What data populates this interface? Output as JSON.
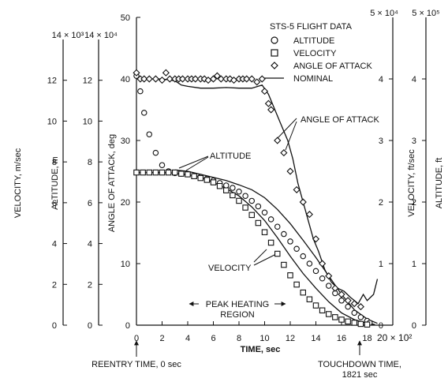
{
  "chart_data": {
    "type": "scatter",
    "title": "STS-5 FLIGHT DATA",
    "x_axis": {
      "label": "TIME, sec",
      "range": [
        0,
        20
      ],
      "ticks": [
        "0",
        "2",
        "4",
        "6",
        "8",
        "10",
        "12",
        "14",
        "16",
        "18"
      ],
      "end_label": "20 × 10²",
      "multiplier": 100
    },
    "y_axes": [
      {
        "id": "aoa",
        "label": "ANGLE OF ATTACK, deg",
        "range": [
          0,
          50
        ],
        "ticks": [
          "0",
          "10",
          "20",
          "30",
          "40",
          "50"
        ]
      },
      {
        "id": "alt_m",
        "label": "ALTITUDE, m",
        "range": [
          0,
          140000
        ],
        "ticks": [
          "0",
          "2",
          "4",
          "6",
          "8",
          "10",
          "12"
        ],
        "multiplier_label": "14 × 10⁴"
      },
      {
        "id": "vel_ms",
        "label": "VELOCITY, m/sec",
        "range": [
          0,
          14000
        ],
        "ticks": [
          "0",
          "2",
          "4",
          "6",
          "8",
          "10",
          "12"
        ],
        "multiplier_label": "14 × 10³"
      },
      {
        "id": "vel_fts",
        "label": "VELOCITY, ft/sec",
        "range": [
          0,
          50000
        ],
        "ticks": [
          "0",
          "1",
          "2",
          "3",
          "4"
        ],
        "multiplier_label": "5 × 10⁴"
      },
      {
        "id": "alt_ft",
        "label": "ALTITUDE, ft",
        "range": [
          0,
          500000
        ],
        "ticks": [
          "0",
          "1",
          "2",
          "3",
          "4"
        ],
        "multiplier_label": "5 × 10⁵"
      }
    ],
    "legend": {
      "title": "STS-5 FLIGHT DATA",
      "entries": [
        {
          "marker": "circle",
          "label": "ALTITUDE"
        },
        {
          "marker": "square",
          "label": "VELOCITY"
        },
        {
          "marker": "diamond",
          "label": "ANGLE OF ATTACK"
        },
        {
          "marker": "line",
          "label": "NOMINAL"
        }
      ],
      "placement": "top-right"
    },
    "annotations": {
      "angle_of_attack": "ANGLE OF ATTACK",
      "altitude": "ALTITUDE",
      "velocity": "VELOCITY",
      "peak_heating_line1": "PEAK HEATING",
      "peak_heating_line2": "REGION",
      "reentry_time": "REENTRY TIME, 0 sec",
      "touchdown_line1": "TOUCHDOWN TIME,",
      "touchdown_line2": "1821 sec"
    },
    "peak_heating_region": [
      4,
      12
    ],
    "series": [
      {
        "name": "ALTITUDE",
        "marker": "circle",
        "axis": "aoa",
        "points": [
          [
            0,
            40.5
          ],
          [
            0.3,
            38
          ],
          [
            0.6,
            34.5
          ],
          [
            1,
            31
          ],
          [
            1.5,
            28
          ],
          [
            2,
            26
          ],
          [
            2.5,
            25
          ],
          [
            3,
            24.7
          ],
          [
            3.5,
            24.6
          ],
          [
            4,
            24.5
          ],
          [
            4.5,
            24.3
          ],
          [
            5,
            24.1
          ],
          [
            5.5,
            23.8
          ],
          [
            6,
            23.5
          ],
          [
            6.5,
            23.1
          ],
          [
            7,
            22.7
          ],
          [
            7.5,
            22.3
          ],
          [
            8,
            21.7
          ],
          [
            8.5,
            21
          ],
          [
            9,
            20.2
          ],
          [
            9.5,
            19.3
          ],
          [
            10,
            18.3
          ],
          [
            10.5,
            17.2
          ],
          [
            11,
            16
          ],
          [
            11.5,
            14.8
          ],
          [
            12,
            13.6
          ],
          [
            12.5,
            12.4
          ],
          [
            13,
            11.2
          ],
          [
            13.5,
            10
          ],
          [
            14,
            8.8
          ],
          [
            14.5,
            7.6
          ],
          [
            15,
            6.4
          ],
          [
            15.5,
            5.2
          ],
          [
            16,
            4
          ],
          [
            16.5,
            3
          ],
          [
            17,
            2
          ],
          [
            17.5,
            1.3
          ],
          [
            18,
            0.7
          ],
          [
            18.2,
            0.4
          ]
        ]
      },
      {
        "name": "VELOCITY",
        "marker": "square",
        "axis": "aoa",
        "points": [
          [
            0,
            24.8
          ],
          [
            0.5,
            24.8
          ],
          [
            1,
            24.8
          ],
          [
            1.5,
            24.8
          ],
          [
            2,
            24.8
          ],
          [
            2.5,
            24.8
          ],
          [
            3,
            24.8
          ],
          [
            3.5,
            24.6
          ],
          [
            4,
            24.5
          ],
          [
            4.5,
            24.2
          ],
          [
            5,
            23.9
          ],
          [
            5.5,
            23.6
          ],
          [
            6,
            23.2
          ],
          [
            6.5,
            22.6
          ],
          [
            7,
            21.9
          ],
          [
            7.5,
            21.1
          ],
          [
            8,
            20.2
          ],
          [
            8.5,
            19.1
          ],
          [
            9,
            17.9
          ],
          [
            9.5,
            16.6
          ],
          [
            10,
            15.1
          ],
          [
            10.5,
            13.4
          ],
          [
            11,
            11.6
          ],
          [
            11.5,
            9.8
          ],
          [
            12,
            8.1
          ],
          [
            12.5,
            6.6
          ],
          [
            13,
            5.3
          ],
          [
            13.5,
            4.2
          ],
          [
            14,
            3.2
          ],
          [
            14.5,
            2.4
          ],
          [
            15,
            1.8
          ],
          [
            15.5,
            1.3
          ],
          [
            16,
            0.9
          ],
          [
            16.5,
            0.6
          ],
          [
            17,
            0.4
          ],
          [
            17.5,
            0.2
          ],
          [
            18,
            0.1
          ]
        ]
      },
      {
        "name": "ANGLE OF ATTACK",
        "marker": "diamond",
        "axis": "aoa",
        "points": [
          [
            0,
            41
          ],
          [
            0.3,
            40
          ],
          [
            0.6,
            40
          ],
          [
            1,
            40
          ],
          [
            1.5,
            40
          ],
          [
            2,
            39.8
          ],
          [
            2.3,
            41
          ],
          [
            2.6,
            40
          ],
          [
            3,
            40
          ],
          [
            3.3,
            40
          ],
          [
            3.6,
            40
          ],
          [
            4,
            40
          ],
          [
            4.3,
            40
          ],
          [
            4.6,
            40
          ],
          [
            5,
            40
          ],
          [
            5.3,
            40
          ],
          [
            5.6,
            39.8
          ],
          [
            6,
            40
          ],
          [
            6.3,
            40.5
          ],
          [
            6.6,
            40
          ],
          [
            7,
            40
          ],
          [
            7.3,
            40
          ],
          [
            7.6,
            39.8
          ],
          [
            8,
            40
          ],
          [
            8.3,
            40
          ],
          [
            8.6,
            40
          ],
          [
            9,
            40
          ],
          [
            9.4,
            39.5
          ],
          [
            9.8,
            40
          ],
          [
            10,
            38
          ],
          [
            10.3,
            36
          ],
          [
            10.5,
            35
          ],
          [
            11,
            30
          ],
          [
            11.5,
            28
          ],
          [
            12,
            25
          ],
          [
            12.5,
            22
          ],
          [
            13,
            20
          ],
          [
            13.5,
            18
          ],
          [
            14,
            14
          ],
          [
            14.5,
            10
          ],
          [
            15,
            8
          ],
          [
            15.5,
            6
          ],
          [
            16,
            5
          ],
          [
            16.5,
            4
          ],
          [
            17,
            3.5
          ],
          [
            17.5,
            3
          ]
        ]
      },
      {
        "name": "NOMINAL",
        "marker": "line",
        "axis": "aoa",
        "curves": [
          [
            [
              0,
              40
            ],
            [
              0.5,
              40
            ],
            [
              1,
              40
            ],
            [
              2,
              40
            ],
            [
              3,
              39.7
            ],
            [
              3.5,
              39
            ],
            [
              4,
              38.8
            ],
            [
              5,
              38.5
            ],
            [
              6,
              38.5
            ],
            [
              7,
              38.6
            ],
            [
              8,
              38.5
            ],
            [
              9,
              38.5
            ],
            [
              9.8,
              39
            ],
            [
              10.3,
              37.5
            ],
            [
              10.8,
              35
            ],
            [
              11.2,
              33
            ],
            [
              11.8,
              30
            ],
            [
              12.2,
              27
            ],
            [
              12.6,
              23
            ],
            [
              13,
              20
            ],
            [
              13.4,
              17
            ],
            [
              13.8,
              14
            ],
            [
              14.2,
              12
            ],
            [
              14.7,
              9
            ],
            [
              15.2,
              7
            ],
            [
              15.7,
              6
            ],
            [
              16.2,
              5.5
            ],
            [
              16.7,
              4.5
            ],
            [
              17,
              4
            ],
            [
              17.3,
              3.5
            ],
            [
              17.7,
              5
            ],
            [
              18,
              4
            ],
            [
              18.5,
              5
            ],
            [
              18.8,
              7.5
            ]
          ],
          [
            [
              3,
              25.2
            ],
            [
              4,
              25
            ],
            [
              5,
              24.5
            ],
            [
              6,
              24
            ],
            [
              7,
              23.5
            ],
            [
              8,
              22.8
            ],
            [
              9,
              22
            ],
            [
              10,
              20.7
            ],
            [
              11,
              18.8
            ],
            [
              12,
              16.5
            ],
            [
              13,
              13.8
            ],
            [
              14,
              11
            ],
            [
              15,
              8
            ],
            [
              16,
              5
            ],
            [
              17,
              2.5
            ],
            [
              18,
              1
            ],
            [
              18.8,
              0.3
            ]
          ],
          [
            [
              0,
              24.8
            ],
            [
              2,
              24.8
            ],
            [
              3,
              24.7
            ],
            [
              4,
              24.4
            ],
            [
              5,
              24
            ],
            [
              6,
              23.2
            ],
            [
              7,
              22.2
            ],
            [
              8,
              21
            ],
            [
              9,
              19.2
            ],
            [
              10,
              17
            ],
            [
              11,
              14.2
            ],
            [
              12,
              11.2
            ],
            [
              13,
              8.4
            ],
            [
              14,
              6
            ],
            [
              15,
              3.8
            ],
            [
              16,
              2
            ],
            [
              17,
              0.9
            ],
            [
              18,
              0.3
            ],
            [
              18.6,
              0.1
            ]
          ]
        ]
      }
    ]
  }
}
